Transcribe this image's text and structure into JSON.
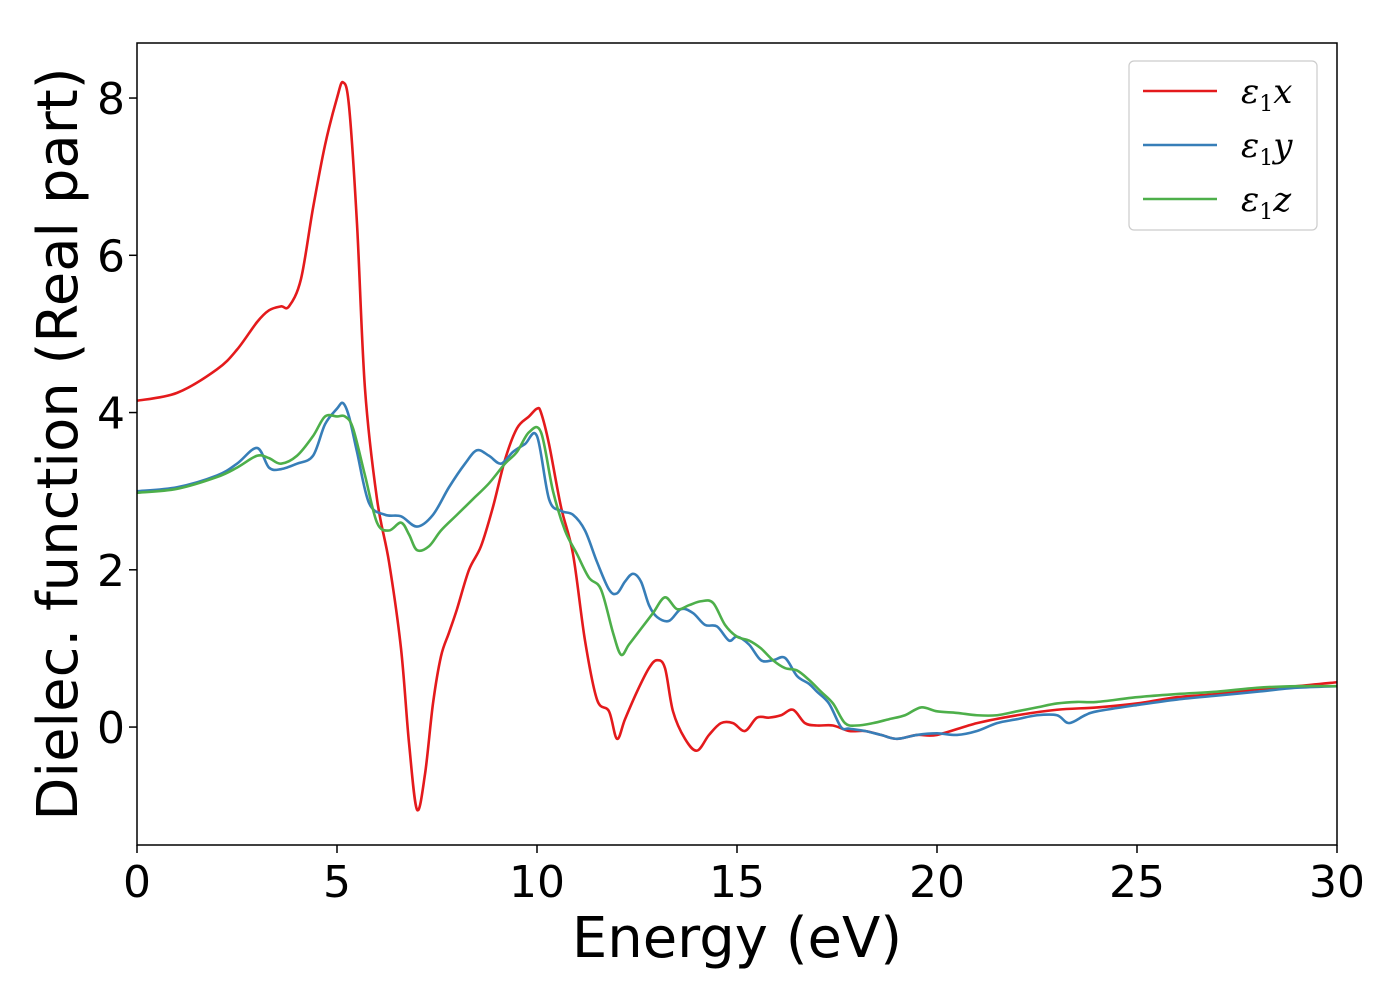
{
  "chart_data": {
    "type": "line",
    "title": "",
    "xlabel": "Energy (eV)",
    "ylabel": "Dielec. function (Real part)",
    "xlim": [
      0,
      30
    ],
    "ylim": [
      -1.5,
      8.7
    ],
    "xticks": [
      0,
      5,
      10,
      15,
      20,
      25,
      30
    ],
    "yticks": [
      0,
      2,
      4,
      6,
      8
    ],
    "grid": false,
    "legend_position": "upper right",
    "series": [
      {
        "name": "ε₁x",
        "base": "ε",
        "sub": "1",
        "comp": "x",
        "color": "#e41a1c",
        "x": [
          0,
          1,
          2,
          2.5,
          3,
          3.3,
          3.6,
          3.8,
          4.1,
          4.4,
          4.7,
          5.0,
          5.15,
          5.3,
          5.5,
          5.7,
          6.0,
          6.3,
          6.6,
          6.8,
          7.0,
          7.2,
          7.4,
          7.6,
          7.8,
          8.0,
          8.3,
          8.6,
          8.9,
          9.2,
          9.5,
          9.8,
          10.0,
          10.1,
          10.3,
          10.6,
          10.9,
          11.2,
          11.5,
          11.8,
          12.0,
          12.2,
          12.5,
          12.8,
          13.0,
          13.2,
          13.4,
          13.7,
          14.0,
          14.3,
          14.6,
          14.9,
          15.2,
          15.5,
          15.8,
          16.1,
          16.4,
          16.7,
          17.0,
          17.4,
          17.8,
          18.2,
          18.6,
          19.0,
          19.5,
          20.0,
          21.0,
          22.0,
          23.0,
          24.0,
          25.0,
          26.0,
          27.0,
          28.0,
          29.0,
          30.0
        ],
        "values": [
          4.15,
          4.25,
          4.55,
          4.8,
          5.15,
          5.3,
          5.35,
          5.35,
          5.7,
          6.6,
          7.4,
          8.0,
          8.2,
          7.9,
          6.4,
          4.3,
          2.9,
          2.1,
          1.0,
          -0.2,
          -1.05,
          -0.6,
          0.3,
          0.9,
          1.2,
          1.5,
          2.0,
          2.3,
          2.8,
          3.4,
          3.8,
          3.95,
          4.05,
          4.0,
          3.6,
          2.8,
          2.2,
          1.1,
          0.35,
          0.2,
          -0.15,
          0.1,
          0.45,
          0.75,
          0.85,
          0.75,
          0.2,
          -0.15,
          -0.3,
          -0.1,
          0.05,
          0.05,
          -0.05,
          0.12,
          0.12,
          0.15,
          0.22,
          0.05,
          0.02,
          0.02,
          -0.05,
          -0.05,
          -0.1,
          -0.15,
          -0.1,
          -0.1,
          0.05,
          0.15,
          0.22,
          0.25,
          0.3,
          0.38,
          0.42,
          0.48,
          0.52,
          0.57
        ]
      },
      {
        "name": "ε₁y",
        "base": "ε",
        "sub": "1",
        "comp": "y",
        "color": "#377eb8",
        "x": [
          0,
          1,
          2,
          2.5,
          3.0,
          3.3,
          3.6,
          4.0,
          4.4,
          4.7,
          5.0,
          5.15,
          5.3,
          5.5,
          5.8,
          6.2,
          6.6,
          7.0,
          7.4,
          7.8,
          8.2,
          8.5,
          8.8,
          9.1,
          9.4,
          9.7,
          10.0,
          10.3,
          10.6,
          10.9,
          11.2,
          11.5,
          11.8,
          12.0,
          12.2,
          12.4,
          12.6,
          12.8,
          13.0,
          13.3,
          13.6,
          13.9,
          14.2,
          14.5,
          14.8,
          15.0,
          15.3,
          15.6,
          15.9,
          16.2,
          16.5,
          16.8,
          17.0,
          17.3,
          17.6,
          17.8,
          18.2,
          18.6,
          19.0,
          19.5,
          20.0,
          20.5,
          21.0,
          21.5,
          22.0,
          22.5,
          23.0,
          23.3,
          23.7,
          24.0,
          25.0,
          26.0,
          27.0,
          28.0,
          29.0,
          30.0
        ],
        "values": [
          3.0,
          3.05,
          3.2,
          3.35,
          3.55,
          3.3,
          3.28,
          3.35,
          3.45,
          3.85,
          4.05,
          4.12,
          3.95,
          3.5,
          2.85,
          2.7,
          2.68,
          2.55,
          2.7,
          3.05,
          3.35,
          3.52,
          3.45,
          3.35,
          3.5,
          3.6,
          3.7,
          2.9,
          2.75,
          2.7,
          2.5,
          2.1,
          1.75,
          1.7,
          1.85,
          1.95,
          1.85,
          1.55,
          1.4,
          1.35,
          1.5,
          1.45,
          1.3,
          1.28,
          1.1,
          1.15,
          1.05,
          0.85,
          0.85,
          0.88,
          0.65,
          0.55,
          0.45,
          0.3,
          0.0,
          -0.02,
          -0.05,
          -0.1,
          -0.15,
          -0.1,
          -0.08,
          -0.1,
          -0.05,
          0.05,
          0.1,
          0.15,
          0.15,
          0.05,
          0.15,
          0.2,
          0.28,
          0.35,
          0.4,
          0.45,
          0.5,
          0.52
        ]
      },
      {
        "name": "ε₁z",
        "base": "ε",
        "sub": "1",
        "comp": "z",
        "color": "#4daf4a",
        "x": [
          0,
          1,
          2,
          2.5,
          3.0,
          3.3,
          3.6,
          4.0,
          4.4,
          4.7,
          5.0,
          5.2,
          5.4,
          5.7,
          6.0,
          6.3,
          6.6,
          6.8,
          7.0,
          7.3,
          7.6,
          8.0,
          8.4,
          8.8,
          9.2,
          9.5,
          9.8,
          10.1,
          10.4,
          10.7,
          11.0,
          11.3,
          11.6,
          11.9,
          12.1,
          12.3,
          12.6,
          12.9,
          13.2,
          13.5,
          13.8,
          14.1,
          14.4,
          14.7,
          15.0,
          15.3,
          15.6,
          15.9,
          16.2,
          16.5,
          16.8,
          17.1,
          17.4,
          17.7,
          18.0,
          18.4,
          18.8,
          19.2,
          19.6,
          20.0,
          20.5,
          21.0,
          21.5,
          22.0,
          22.5,
          23.0,
          23.5,
          24.0,
          25.0,
          26.0,
          27.0,
          28.0,
          29.0,
          30.0
        ],
        "values": [
          2.98,
          3.03,
          3.18,
          3.3,
          3.45,
          3.42,
          3.35,
          3.45,
          3.7,
          3.95,
          3.95,
          3.95,
          3.8,
          3.2,
          2.6,
          2.5,
          2.6,
          2.45,
          2.25,
          2.3,
          2.5,
          2.7,
          2.9,
          3.1,
          3.35,
          3.5,
          3.75,
          3.75,
          3.0,
          2.5,
          2.2,
          1.9,
          1.75,
          1.2,
          0.92,
          1.05,
          1.25,
          1.45,
          1.65,
          1.5,
          1.55,
          1.6,
          1.58,
          1.3,
          1.15,
          1.1,
          1.0,
          0.85,
          0.75,
          0.72,
          0.6,
          0.45,
          0.3,
          0.05,
          0.02,
          0.05,
          0.1,
          0.15,
          0.25,
          0.2,
          0.18,
          0.15,
          0.15,
          0.2,
          0.25,
          0.3,
          0.32,
          0.32,
          0.38,
          0.42,
          0.45,
          0.5,
          0.52,
          0.52
        ]
      }
    ]
  }
}
